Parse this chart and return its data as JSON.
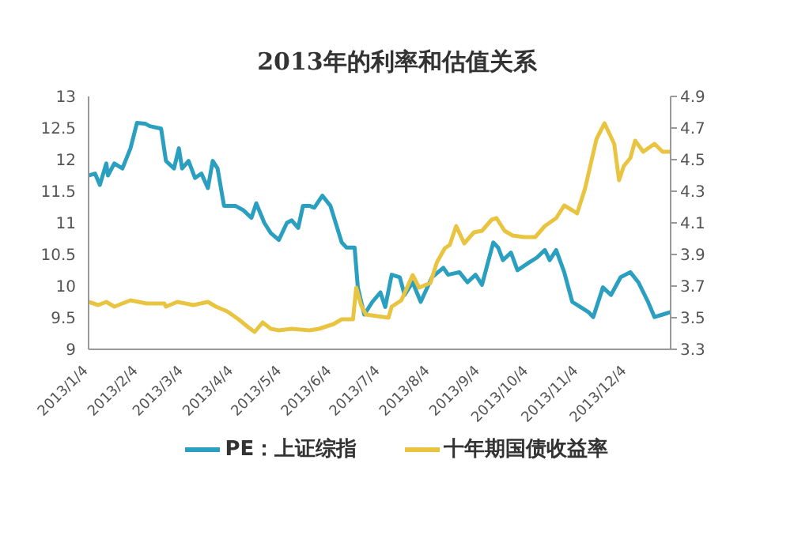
{
  "chart_data": {
    "type": "line",
    "title": "2013年的利率和估值关系",
    "xlim": [
      "2013-01-04",
      "2013-12-31"
    ],
    "xticks": [
      {
        "value": "2013-01-04",
        "label": "2013/1/4"
      },
      {
        "value": "2013-02-04",
        "label": "2013/2/4"
      },
      {
        "value": "2013-03-04",
        "label": "2013/3/4"
      },
      {
        "value": "2013-04-04",
        "label": "2013/4/4"
      },
      {
        "value": "2013-05-04",
        "label": "2013/5/4"
      },
      {
        "value": "2013-06-04",
        "label": "2013/6/4"
      },
      {
        "value": "2013-07-04",
        "label": "2013/7/4"
      },
      {
        "value": "2013-08-04",
        "label": "2013/8/4"
      },
      {
        "value": "2013-09-04",
        "label": "2013/9/4"
      },
      {
        "value": "2013-10-04",
        "label": "2013/10/4"
      },
      {
        "value": "2013-11-04",
        "label": "2013/11/4"
      },
      {
        "value": "2013-12-04",
        "label": "2013/12/4"
      }
    ],
    "ylim": [
      9,
      13
    ],
    "yticks": [
      9,
      9.5,
      10,
      10.5,
      11,
      11.5,
      12,
      12.5,
      13
    ],
    "y2lim": [
      3.3,
      4.9
    ],
    "y2ticks": [
      3.3,
      3.5,
      3.7,
      3.9,
      4.1,
      4.3,
      4.5,
      4.7,
      4.9
    ],
    "legend": "bottom",
    "grid": false,
    "series": [
      {
        "name": "PE：上证综指",
        "color": "#2a9fc0",
        "x": [
          "2013-01-04",
          "2013-01-08",
          "2013-01-11",
          "2013-01-15",
          "2013-01-16",
          "2013-01-20",
          "2013-01-25",
          "2013-01-30",
          "2013-02-03",
          "2013-02-08",
          "2013-02-11",
          "2013-02-18",
          "2013-02-21",
          "2013-02-26",
          "2013-03-01",
          "2013-03-03",
          "2013-03-07",
          "2013-03-11",
          "2013-03-15",
          "2013-03-19",
          "2013-03-22",
          "2013-03-25",
          "2013-03-29",
          "2013-04-05",
          "2013-04-10",
          "2013-04-15",
          "2013-04-18",
          "2013-04-23",
          "2013-04-27",
          "2013-05-02",
          "2013-05-07",
          "2013-05-10",
          "2013-05-14",
          "2013-05-17",
          "2013-05-21",
          "2013-05-24",
          "2013-05-29",
          "2013-06-03",
          "2013-06-10",
          "2013-06-13",
          "2013-06-18",
          "2013-06-20",
          "2013-06-24",
          "2013-06-29",
          "2013-07-04",
          "2013-07-07",
          "2013-07-11",
          "2013-07-16",
          "2013-07-19",
          "2013-07-24",
          "2013-07-29",
          "2013-08-05",
          "2013-08-12",
          "2013-08-15",
          "2013-08-22",
          "2013-08-27",
          "2013-09-01",
          "2013-09-05",
          "2013-09-12",
          "2013-09-15",
          "2013-09-18",
          "2013-09-23",
          "2013-09-27",
          "2013-10-04",
          "2013-10-09",
          "2013-10-14",
          "2013-10-17",
          "2013-10-21",
          "2013-10-26",
          "2013-10-31",
          "2013-11-05",
          "2013-11-10",
          "2013-11-13",
          "2013-11-19",
          "2013-11-24",
          "2013-11-30",
          "2013-12-06",
          "2013-12-11",
          "2013-12-17",
          "2013-12-21",
          "2013-12-26",
          "2013-12-31"
        ],
        "values": [
          11.75,
          11.78,
          11.6,
          11.94,
          11.75,
          11.94,
          11.86,
          12.18,
          12.58,
          12.57,
          12.53,
          12.49,
          11.98,
          11.86,
          12.18,
          11.86,
          11.98,
          11.71,
          11.78,
          11.55,
          11.98,
          11.86,
          11.27,
          11.27,
          11.2,
          11.08,
          11.31,
          11.0,
          10.84,
          10.73,
          11.0,
          11.04,
          10.92,
          11.27,
          11.27,
          11.24,
          11.43,
          11.27,
          10.69,
          10.61,
          10.61,
          9.98,
          9.55,
          9.75,
          9.9,
          9.67,
          10.18,
          10.14,
          9.86,
          10.06,
          9.75,
          10.14,
          10.29,
          10.18,
          10.22,
          10.06,
          10.18,
          10.02,
          10.69,
          10.61,
          10.41,
          10.53,
          10.25,
          10.37,
          10.45,
          10.57,
          10.41,
          10.57,
          10.22,
          9.75,
          9.67,
          9.59,
          9.51,
          9.98,
          9.86,
          10.14,
          10.22,
          10.06,
          9.75,
          9.51,
          9.55,
          9.59
        ]
      },
      {
        "name": "十年期国债收益率",
        "color": "#e8c440",
        "axis": "y2",
        "x": [
          "2013-01-04",
          "2013-01-10",
          "2013-01-15",
          "2013-01-20",
          "2013-01-30",
          "2013-02-09",
          "2013-02-20",
          "2013-02-21",
          "2013-02-28",
          "2013-03-10",
          "2013-03-19",
          "2013-03-24",
          "2013-03-31",
          "2013-04-07",
          "2013-04-13",
          "2013-04-17",
          "2013-04-22",
          "2013-04-27",
          "2013-05-02",
          "2013-05-10",
          "2013-05-21",
          "2013-05-27",
          "2013-06-05",
          "2013-06-10",
          "2013-06-17",
          "2013-06-19",
          "2013-06-22",
          "2013-06-25",
          "2013-07-02",
          "2013-07-09",
          "2013-07-11",
          "2013-07-17",
          "2013-07-24",
          "2013-07-28",
          "2013-08-04",
          "2013-08-08",
          "2013-08-13",
          "2013-08-16",
          "2013-08-20",
          "2013-08-25",
          "2013-08-31",
          "2013-09-05",
          "2013-09-11",
          "2013-09-14",
          "2013-09-19",
          "2013-09-24",
          "2013-10-01",
          "2013-10-08",
          "2013-10-14",
          "2013-10-21",
          "2013-10-26",
          "2013-10-31",
          "2013-11-03",
          "2013-11-08",
          "2013-11-15",
          "2013-11-20",
          "2013-11-26",
          "2013-11-29",
          "2013-12-02",
          "2013-12-06",
          "2013-12-09",
          "2013-12-14",
          "2013-12-21",
          "2013-12-26",
          "2013-12-31"
        ],
        "values": [
          3.6,
          3.58,
          3.6,
          3.57,
          3.61,
          3.59,
          3.59,
          3.57,
          3.6,
          3.58,
          3.6,
          3.57,
          3.54,
          3.49,
          3.44,
          3.41,
          3.47,
          3.43,
          3.42,
          3.43,
          3.42,
          3.43,
          3.46,
          3.49,
          3.49,
          3.69,
          3.58,
          3.52,
          3.51,
          3.5,
          3.57,
          3.61,
          3.77,
          3.69,
          3.72,
          3.85,
          3.94,
          3.96,
          4.08,
          3.97,
          4.04,
          4.05,
          4.12,
          4.13,
          4.05,
          4.02,
          4.01,
          4.01,
          4.08,
          4.13,
          4.21,
          4.18,
          4.16,
          4.32,
          4.63,
          4.73,
          4.6,
          4.37,
          4.46,
          4.51,
          4.62,
          4.55,
          4.6,
          4.55,
          4.55
        ]
      }
    ]
  }
}
